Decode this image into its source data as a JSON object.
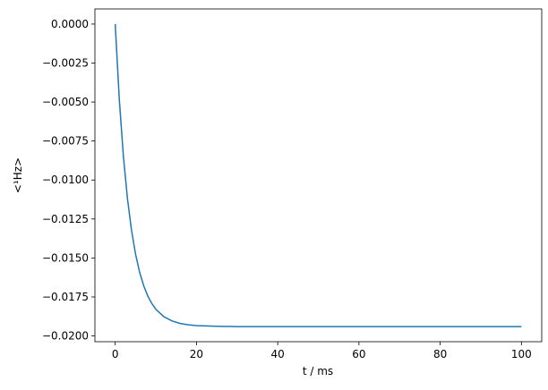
{
  "chart_data": {
    "type": "line",
    "xlabel": "t / ms",
    "ylabel": "<¹Hz>",
    "x": [
      0,
      1,
      2,
      3,
      4,
      5,
      6,
      7,
      8,
      9,
      10,
      12,
      14,
      16,
      18,
      20,
      25,
      30,
      40,
      50,
      60,
      70,
      80,
      90,
      100
    ],
    "series": [
      {
        "name": "<¹Hz>",
        "color": "#1f77b4",
        "values": [
          0,
          -0.00482,
          -0.00844,
          -0.01117,
          -0.01321,
          -0.01475,
          -0.01591,
          -0.01677,
          -0.01743,
          -0.01792,
          -0.01829,
          -0.01877,
          -0.01904,
          -0.0192,
          -0.01929,
          -0.01934,
          -0.01938,
          -0.0194,
          -0.0194,
          -0.0194,
          -0.0194,
          -0.0194,
          -0.0194,
          -0.0194,
          -0.0194
        ]
      }
    ],
    "xlim": [
      -5,
      105
    ],
    "xticks": [
      0,
      20,
      40,
      60,
      80,
      100
    ],
    "ylim": [
      -0.02037,
      0.00097
    ],
    "yticks": [
      {
        "value": 0,
        "label": "0.0000"
      },
      {
        "value": -0.0025,
        "label": "−0.0025"
      },
      {
        "value": -0.005,
        "label": "−0.0050"
      },
      {
        "value": -0.0075,
        "label": "−0.0075"
      },
      {
        "value": -0.01,
        "label": "−0.0100"
      },
      {
        "value": -0.0125,
        "label": "−0.0125"
      },
      {
        "value": -0.015,
        "label": "−0.0150"
      },
      {
        "value": -0.0175,
        "label": "−0.0175"
      },
      {
        "value": -0.02,
        "label": "−0.0200"
      }
    ],
    "grid": false
  }
}
